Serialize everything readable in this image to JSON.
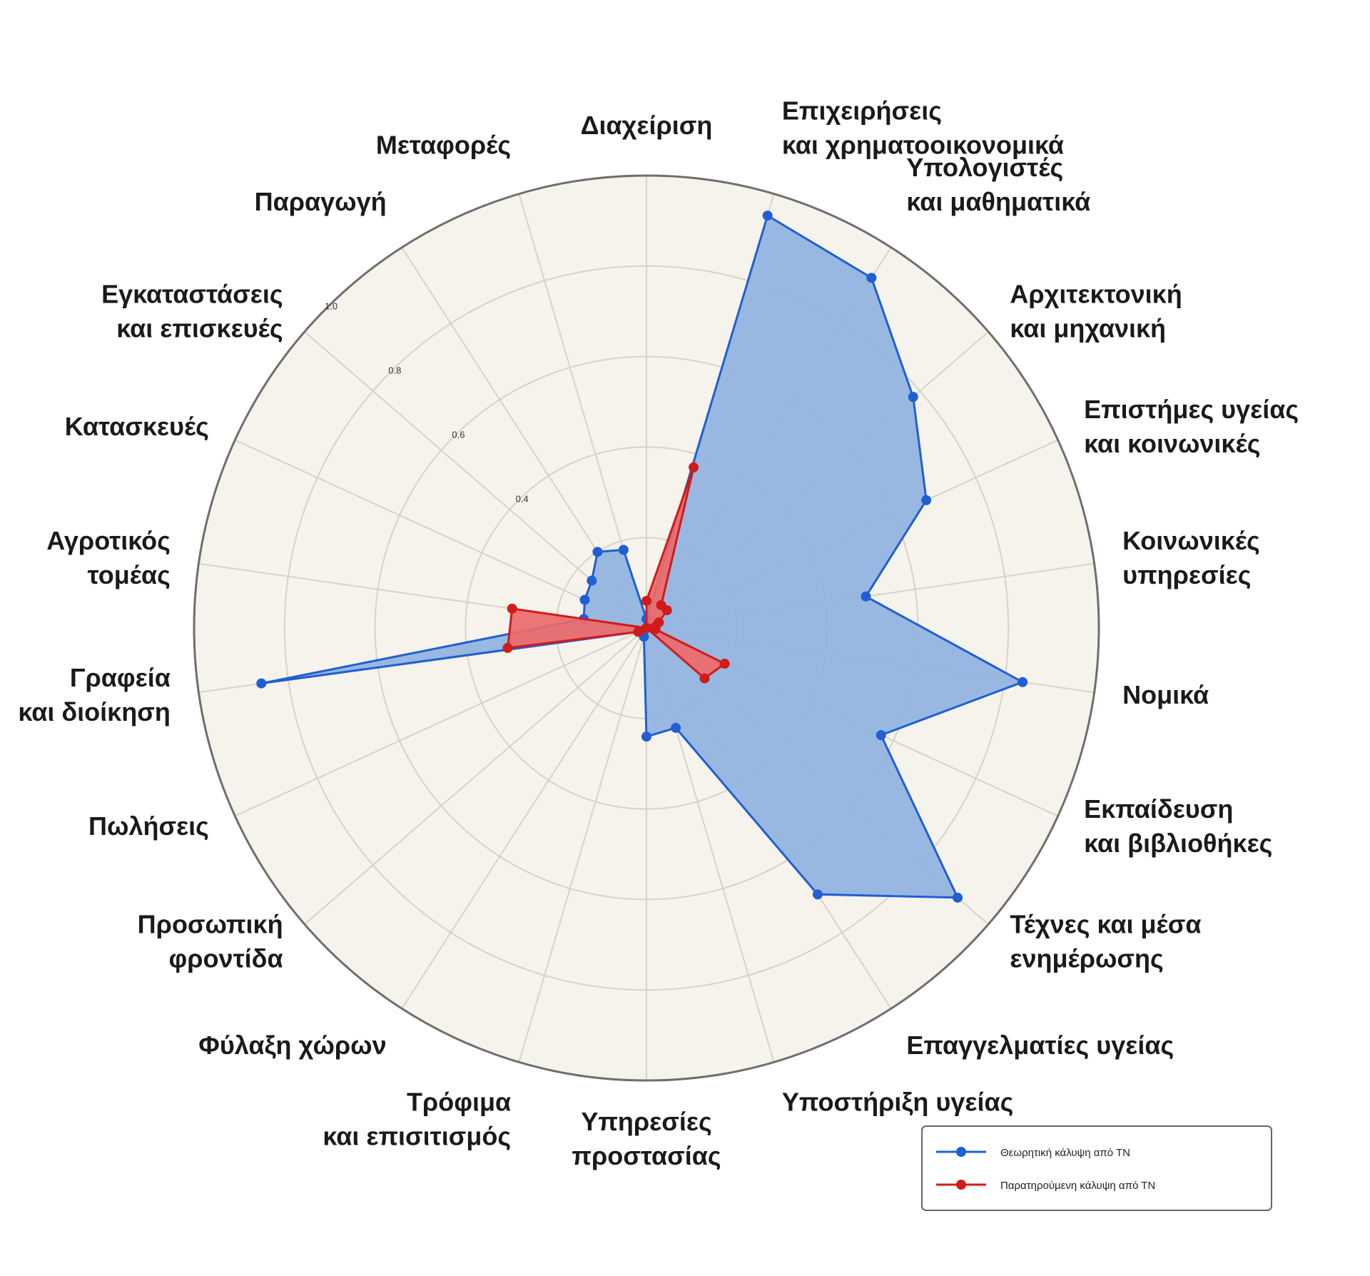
{
  "chart_data": {
    "type": "radar",
    "categories": [
      [
        "Διαχείριση"
      ],
      [
        "Επιχειρήσεις",
        "και χρηματοοικονομικά"
      ],
      [
        "Υπολογιστές",
        "και μαθηματικά"
      ],
      [
        "Αρχιτεκτονική",
        "και μηχανική"
      ],
      [
        "Επιστήμες υγείας",
        "και κοινωνικές"
      ],
      [
        "Κοινωνικές",
        "υπηρεσίες"
      ],
      [
        "Νομικά"
      ],
      [
        "Εκπαίδευση",
        "και βιβλιοθήκες"
      ],
      [
        "Τέχνες και μέσα",
        "ενημέρωσης"
      ],
      [
        "Επαγγελματίες υγείας"
      ],
      [
        "Υποστήριξη υγείας"
      ],
      [
        "Υπηρεσίες",
        "προστασίας"
      ],
      [
        "Τρόφιμα",
        "και επισιτισμός"
      ],
      [
        "Φύλαξη χώρων"
      ],
      [
        "Προσωπική",
        "φροντίδα"
      ],
      [
        "Πωλήσεις"
      ],
      [
        "Γραφεία",
        "και διοίκηση"
      ],
      [
        "Αγροτικός",
        "τομέας"
      ],
      [
        "Κατασκευές"
      ],
      [
        "Εγκαταστάσεις",
        "και επισκευές"
      ],
      [
        "Παραγωγή"
      ],
      [
        "Μεταφορές"
      ]
    ],
    "rticks": [
      0.4,
      0.6,
      0.8,
      1.0
    ],
    "rtick_labels": [
      "0.4",
      "0.6",
      "0.8",
      "1.0"
    ],
    "rlim": [
      0,
      1.0
    ],
    "grid": true,
    "series": [
      {
        "name": "Θεωρητική κάλυψη από ΤΝ",
        "color": "#1f5fd1",
        "fill": "#8fb3df",
        "values": [
          0.02,
          0.95,
          0.92,
          0.78,
          0.68,
          0.49,
          0.84,
          0.57,
          0.91,
          0.7,
          0.23,
          0.24,
          0.02,
          0.0,
          0.0,
          0.02,
          0.86,
          0.14,
          0.15,
          0.16,
          0.2,
          0.18
        ]
      },
      {
        "name": "Παρατηρούμενη κάλυψη από ΤΝ",
        "color": "#d01b1b",
        "fill": "#eb6a6a",
        "values": [
          0.06,
          0.37,
          0.06,
          0.06,
          0.03,
          0.02,
          0.02,
          0.19,
          0.17,
          0.0,
          0.0,
          0.0,
          0.0,
          0.0,
          0.0,
          0.02,
          0.31,
          0.3,
          0.0,
          0.0,
          0.0,
          0.0
        ]
      }
    ],
    "legend": {
      "placement": "bottom-right"
    }
  }
}
